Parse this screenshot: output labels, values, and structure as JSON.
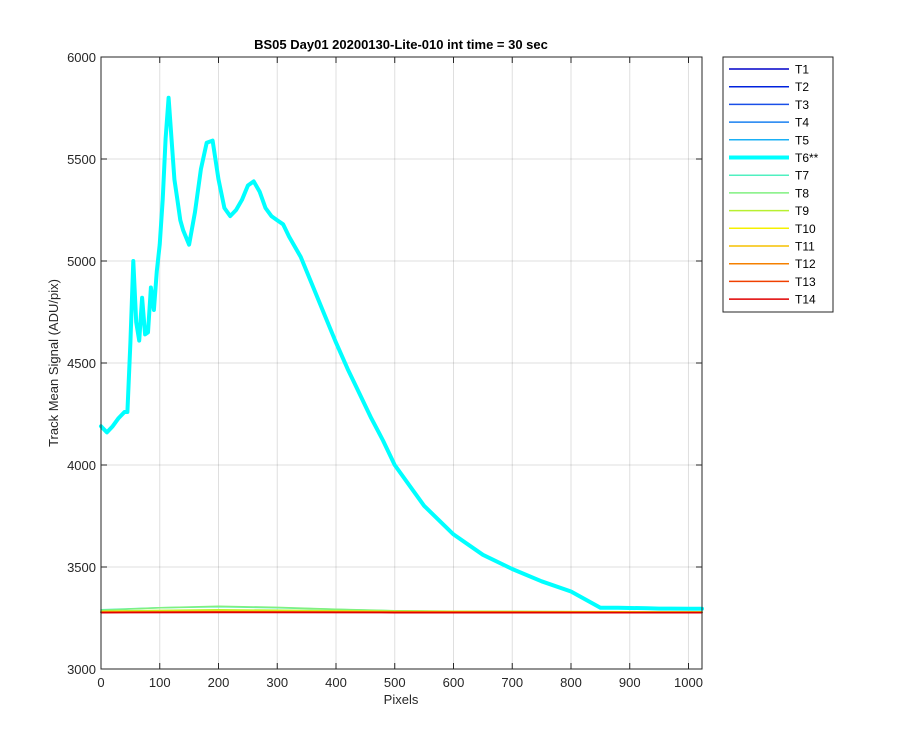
{
  "chart_data": {
    "type": "line",
    "title": "BS05 Day01 20200130-Lite-010 int time = 30 sec",
    "xlabel": "Pixels",
    "ylabel": "Track Mean Signal (ADU/pix)",
    "xlim": [
      0,
      1023
    ],
    "ylim": [
      3000,
      6000
    ],
    "xticks": [
      0,
      100,
      200,
      300,
      400,
      500,
      600,
      700,
      800,
      900,
      1000
    ],
    "yticks": [
      3000,
      3500,
      4000,
      4500,
      5000,
      5500,
      6000
    ],
    "grid": true,
    "legend_position": "outside-right",
    "series": [
      {
        "name": "T1",
        "color": "#0000c8",
        "highlight": false,
        "x": [
          0,
          200,
          500,
          1023
        ],
        "y": [
          3278,
          3280,
          3279,
          3278
        ]
      },
      {
        "name": "T2",
        "color": "#0022dd",
        "highlight": false,
        "x": [
          0,
          200,
          500,
          1023
        ],
        "y": [
          3279,
          3281,
          3280,
          3279
        ]
      },
      {
        "name": "T3",
        "color": "#1a4fe8",
        "highlight": false,
        "x": [
          0,
          200,
          500,
          1023
        ],
        "y": [
          3280,
          3282,
          3280,
          3279
        ]
      },
      {
        "name": "T4",
        "color": "#1a80f0",
        "highlight": false,
        "x": [
          0,
          200,
          500,
          1023
        ],
        "y": [
          3281,
          3283,
          3281,
          3279
        ]
      },
      {
        "name": "T5",
        "color": "#1ab0f5",
        "highlight": false,
        "x": [
          0,
          200,
          500,
          1023
        ],
        "y": [
          3282,
          3285,
          3282,
          3280
        ]
      },
      {
        "name": "T6**",
        "color": "#00ffff",
        "highlight": true,
        "x": [
          0,
          10,
          20,
          30,
          40,
          45,
          50,
          55,
          60,
          65,
          70,
          75,
          80,
          85,
          90,
          95,
          100,
          105,
          110,
          115,
          120,
          125,
          130,
          135,
          140,
          150,
          160,
          170,
          180,
          190,
          200,
          210,
          220,
          230,
          240,
          250,
          260,
          270,
          280,
          290,
          300,
          310,
          320,
          340,
          360,
          380,
          400,
          420,
          440,
          460,
          480,
          500,
          550,
          600,
          650,
          700,
          750,
          800,
          850,
          880,
          900,
          930,
          950,
          970,
          1000,
          1023
        ],
        "y": [
          4190,
          4160,
          4190,
          4230,
          4260,
          4260,
          4600,
          5000,
          4700,
          4610,
          4820,
          4640,
          4650,
          4870,
          4760,
          4950,
          5080,
          5300,
          5600,
          5800,
          5600,
          5400,
          5300,
          5200,
          5150,
          5080,
          5240,
          5450,
          5580,
          5590,
          5400,
          5260,
          5220,
          5250,
          5300,
          5370,
          5390,
          5340,
          5260,
          5220,
          5200,
          5180,
          5120,
          5020,
          4880,
          4740,
          4600,
          4470,
          4350,
          4230,
          4120,
          4000,
          3800,
          3660,
          3560,
          3490,
          3430,
          3380,
          3300,
          3300,
          3299,
          3298,
          3296,
          3296,
          3295,
          3295
        ]
      },
      {
        "name": "T7",
        "color": "#50f0c0",
        "highlight": false,
        "x": [
          0,
          100,
          200,
          300,
          400,
          500,
          600,
          800,
          1023
        ],
        "y": [
          3290,
          3300,
          3305,
          3300,
          3292,
          3285,
          3282,
          3280,
          3280
        ]
      },
      {
        "name": "T8",
        "color": "#80f080",
        "highlight": false,
        "x": [
          0,
          100,
          200,
          300,
          400,
          500,
          600,
          800,
          1023
        ],
        "y": [
          3288,
          3300,
          3308,
          3302,
          3293,
          3286,
          3283,
          3280,
          3280
        ]
      },
      {
        "name": "T9",
        "color": "#b8f030",
        "highlight": false,
        "x": [
          0,
          200,
          500,
          1023
        ],
        "y": [
          3284,
          3290,
          3284,
          3280
        ]
      },
      {
        "name": "T10",
        "color": "#f5f000",
        "highlight": false,
        "x": [
          0,
          200,
          500,
          1023
        ],
        "y": [
          3281,
          3284,
          3281,
          3279
        ]
      },
      {
        "name": "T11",
        "color": "#f5c000",
        "highlight": false,
        "x": [
          0,
          200,
          500,
          1023
        ],
        "y": [
          3280,
          3282,
          3280,
          3279
        ]
      },
      {
        "name": "T12",
        "color": "#f58000",
        "highlight": false,
        "x": [
          0,
          200,
          500,
          1023
        ],
        "y": [
          3279,
          3281,
          3279,
          3278
        ]
      },
      {
        "name": "T13",
        "color": "#f04000",
        "highlight": false,
        "x": [
          0,
          200,
          500,
          1023
        ],
        "y": [
          3278,
          3280,
          3279,
          3278
        ]
      },
      {
        "name": "T14",
        "color": "#e00000",
        "highlight": false,
        "x": [
          0,
          200,
          500,
          1023
        ],
        "y": [
          3276,
          3277,
          3276,
          3276
        ]
      }
    ]
  }
}
